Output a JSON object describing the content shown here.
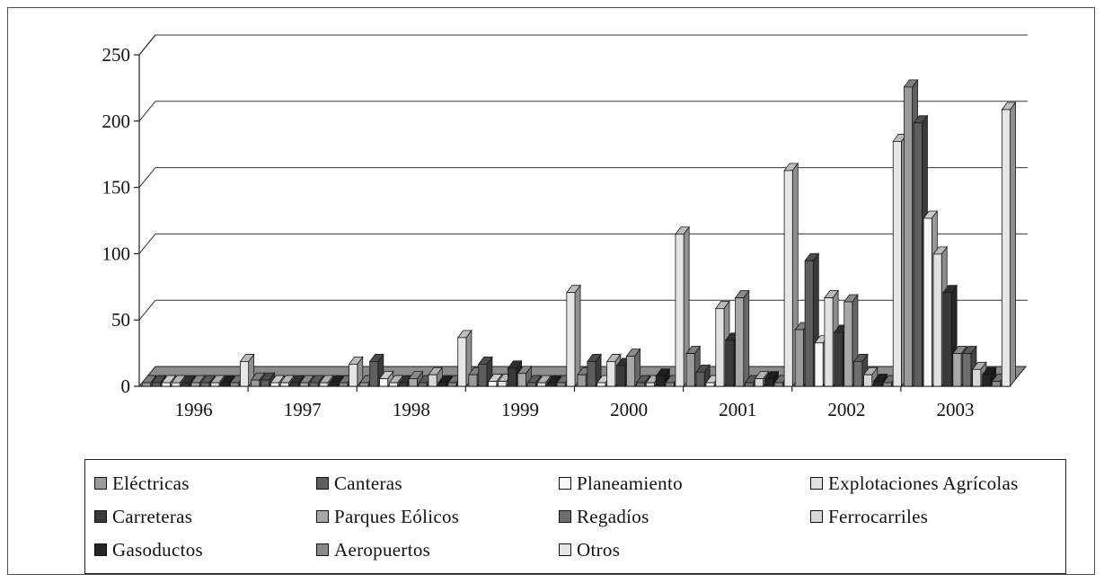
{
  "chart_data": {
    "type": "bar",
    "subtype": "3d-clustered-column",
    "categories": [
      "1996",
      "1997",
      "1998",
      "1999",
      "2000",
      "2001",
      "2002",
      "2003"
    ],
    "ylim": [
      0,
      250
    ],
    "yticks": [
      "0",
      "50",
      "100",
      "150",
      "200",
      "250"
    ],
    "grid": true,
    "legend_position": "bottom",
    "series": [
      {
        "name": "Eléctricas",
        "color": "#9a9a9a",
        "values": [
          2,
          4,
          2,
          8,
          8,
          24,
          42,
          225
        ]
      },
      {
        "name": "Canteras",
        "color": "#5e5e5e",
        "values": [
          2,
          4,
          18,
          16,
          18,
          10,
          94,
          198
        ]
      },
      {
        "name": "Planeamiento",
        "color": "#f8f8f8",
        "values": [
          2,
          2,
          5,
          3,
          2,
          2,
          32,
          126
        ]
      },
      {
        "name": "Explotaciones Agrícolas",
        "color": "#e2e2e2",
        "values": [
          2,
          2,
          2,
          3,
          18,
          58,
          66,
          99
        ]
      },
      {
        "name": "Carreteras",
        "color": "#3a3a3a",
        "values": [
          2,
          2,
          2,
          13,
          15,
          34,
          40,
          70
        ]
      },
      {
        "name": "Parques Eólicos",
        "color": "#a8a8a8",
        "values": [
          2,
          2,
          5,
          9,
          22,
          66,
          63,
          24
        ]
      },
      {
        "name": "Regadíos",
        "color": "#6e6e6e",
        "values": [
          2,
          2,
          2,
          2,
          2,
          2,
          18,
          24
        ]
      },
      {
        "name": "Ferrocarriles",
        "color": "#d8d8d8",
        "values": [
          2,
          2,
          8,
          2,
          2,
          5,
          8,
          12
        ]
      },
      {
        "name": "Gasoductos",
        "color": "#262626",
        "values": [
          2,
          2,
          2,
          2,
          7,
          5,
          3,
          8
        ]
      },
      {
        "name": "Aeropuertos",
        "color": "#8a8a8a",
        "values": [
          2,
          2,
          2,
          2,
          2,
          2,
          2,
          3
        ]
      },
      {
        "name": "Otros",
        "color": "#e6e6e6",
        "values": [
          18,
          16,
          36,
          70,
          114,
          162,
          184,
          208
        ]
      }
    ]
  }
}
